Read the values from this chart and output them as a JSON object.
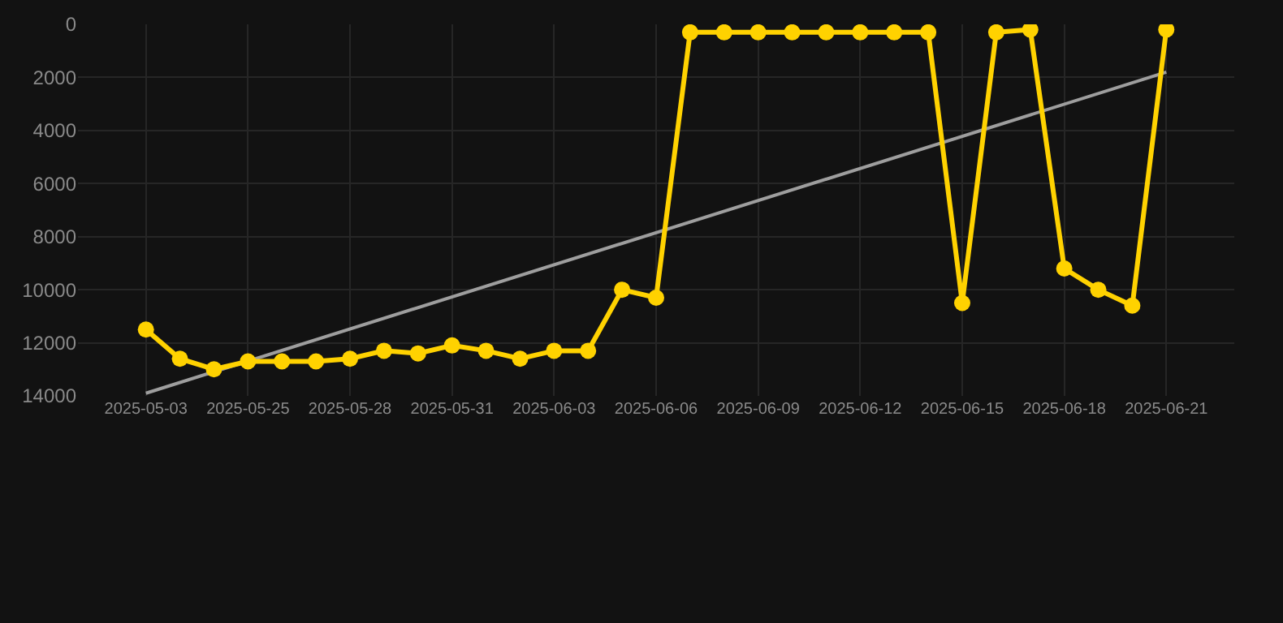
{
  "chart_data": {
    "type": "line",
    "categories": [
      "2025-05-03",
      null,
      null,
      "2025-05-25",
      null,
      null,
      "2025-05-28",
      null,
      null,
      "2025-05-31",
      null,
      null,
      "2025-06-03",
      null,
      null,
      "2025-06-06",
      null,
      null,
      "2025-06-09",
      null,
      null,
      "2025-06-12",
      null,
      null,
      "2025-06-15",
      null,
      null,
      "2025-06-18",
      null,
      null,
      "2025-06-21"
    ],
    "series": [
      {
        "color": "#9e9e9e",
        "type": "line",
        "marker": "none",
        "values": [
          13900,
          null,
          null,
          null,
          null,
          null,
          null,
          null,
          null,
          null,
          null,
          null,
          null,
          null,
          null,
          null,
          null,
          null,
          null,
          null,
          null,
          null,
          null,
          null,
          null,
          null,
          null,
          null,
          null,
          null,
          1800
        ]
      },
      {
        "color": "#ffd200",
        "marker": "circle",
        "values": [
          11500,
          12600,
          13000,
          12700,
          12700,
          12700,
          12600,
          12300,
          12400,
          12100,
          12300,
          12600,
          12300,
          12300,
          10000,
          10300,
          300,
          300,
          300,
          300,
          300,
          300,
          300,
          300,
          10500,
          300,
          200,
          9200,
          10000,
          10600,
          200
        ]
      }
    ],
    "ylim": [
      14000,
      0
    ],
    "yticks": [
      0,
      2000,
      4000,
      6000,
      8000,
      10000,
      12000,
      14000
    ],
    "grid": true
  }
}
